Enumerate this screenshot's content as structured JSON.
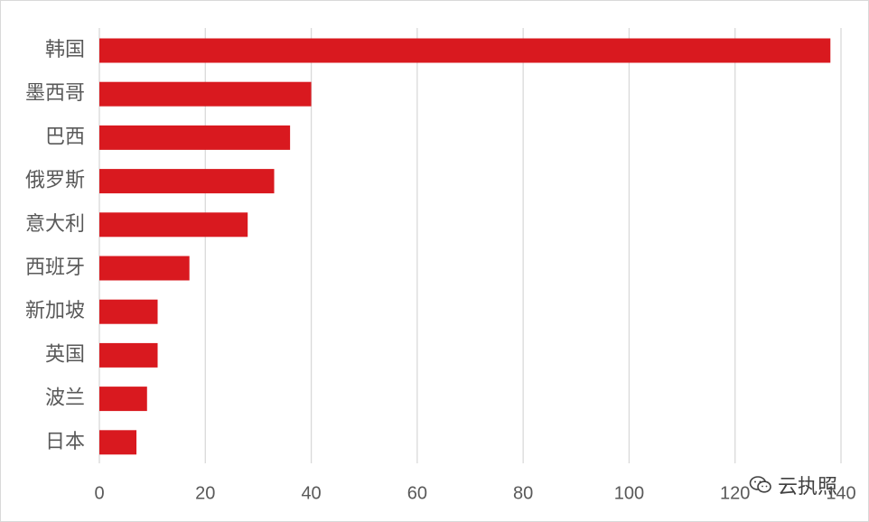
{
  "chart_data": {
    "type": "bar",
    "orientation": "horizontal",
    "categories": [
      "韩国",
      "墨西哥",
      "巴西",
      "俄罗斯",
      "意大利",
      "西班牙",
      "新加坡",
      "英国",
      "波兰",
      "日本"
    ],
    "values": [
      138,
      40,
      36,
      33,
      28,
      17,
      11,
      11,
      9,
      7
    ],
    "xlim": [
      0,
      140
    ],
    "xticks": [
      0,
      20,
      40,
      60,
      80,
      100,
      120,
      140
    ],
    "grid": true,
    "bar_color": "#d9191f",
    "title": "",
    "xlabel": "",
    "ylabel": ""
  },
  "watermark": {
    "text": "云执照",
    "icon": "wechat-icon"
  }
}
